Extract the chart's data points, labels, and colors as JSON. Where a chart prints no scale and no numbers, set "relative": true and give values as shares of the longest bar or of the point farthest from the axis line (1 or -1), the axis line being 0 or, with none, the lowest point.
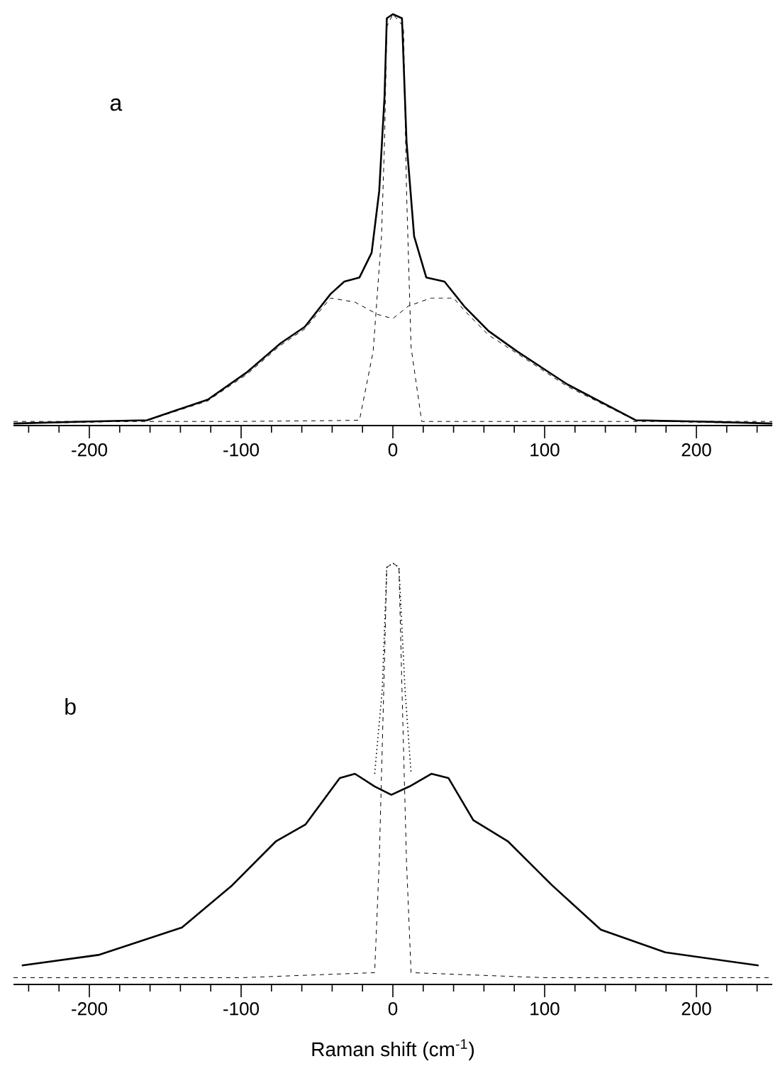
{
  "chart_data": [
    {
      "type": "line",
      "relative": true,
      "annotations": [
        "a"
      ],
      "xlim": [
        -250,
        250
      ],
      "xticks": [
        {
          "value": -240,
          "label": null
        },
        {
          "value": -220,
          "label": null
        },
        -200,
        {
          "value": -180,
          "label": null
        },
        {
          "value": -160,
          "label": null
        },
        {
          "value": -140,
          "label": null
        },
        {
          "value": -120,
          "label": null
        },
        -100,
        {
          "value": -80,
          "label": null
        },
        {
          "value": -60,
          "label": null
        },
        {
          "value": -40,
          "label": null
        },
        {
          "value": -20,
          "label": null
        },
        0,
        {
          "value": 20,
          "label": null
        },
        {
          "value": 40,
          "label": null
        },
        {
          "value": 60,
          "label": null
        },
        {
          "value": 80,
          "label": null
        },
        100,
        {
          "value": 120,
          "label": null
        },
        {
          "value": 140,
          "label": null
        },
        {
          "value": 160,
          "label": null
        },
        {
          "value": 180,
          "label": null
        },
        200,
        {
          "value": 220,
          "label": null
        },
        {
          "value": 240,
          "label": null
        }
      ],
      "series": [
        {
          "color": "#000000",
          "line_style": "solid",
          "x": [
            -250,
            -200,
            -162,
            -122,
            -96,
            -74,
            -58,
            -41,
            -32,
            -22,
            -14,
            -9,
            -5.5,
            -4,
            0,
            6,
            9,
            14,
            22,
            34,
            47,
            63,
            82,
            115,
            160,
            200,
            250
          ],
          "values": [
            0.005,
            0.01,
            0.013,
            0.063,
            0.13,
            0.2,
            0.24,
            0.32,
            0.35,
            0.36,
            0.42,
            0.57,
            0.8,
            0.99,
            1,
            0.99,
            0.69,
            0.46,
            0.36,
            0.35,
            0.29,
            0.23,
            0.18,
            0.1,
            0.013,
            0.01,
            0.005
          ]
        },
        {
          "color": "#000000",
          "line_style": "dashed",
          "x": [
            -250,
            -200,
            -162,
            -122,
            -96,
            -74,
            -58,
            -41,
            -25,
            -10,
            0,
            10,
            25,
            40,
            47,
            63,
            82,
            115,
            160,
            200,
            250
          ],
          "values": [
            0.005,
            0.008,
            0.012,
            0.06,
            0.125,
            0.195,
            0.235,
            0.31,
            0.3,
            0.27,
            0.26,
            0.29,
            0.31,
            0.31,
            0.28,
            0.22,
            0.175,
            0.095,
            0.012,
            0.008,
            0.005
          ]
        },
        {
          "color": "#000000",
          "line_style": "dashed",
          "x": [
            -250,
            -100,
            -40,
            -22,
            -13,
            -7.5,
            -5.5,
            -4,
            0,
            7,
            9,
            12,
            19,
            40,
            100,
            250
          ],
          "values": [
            0.01,
            0.01,
            0.012,
            0.013,
            0.18,
            0.46,
            0.69,
            0.97,
            1,
            0.97,
            0.57,
            0.19,
            0.01,
            0.01,
            0.01,
            0.01
          ]
        }
      ]
    },
    {
      "type": "line",
      "relative": true,
      "annotations": [
        "b"
      ],
      "xlabel": "Raman shift (cm$^{-1}$)",
      "xlim": [
        -250,
        250
      ],
      "xticks": [
        {
          "value": -240,
          "label": null
        },
        {
          "value": -220,
          "label": null
        },
        -200,
        {
          "value": -180,
          "label": null
        },
        {
          "value": -160,
          "label": null
        },
        {
          "value": -140,
          "label": null
        },
        {
          "value": -120,
          "label": null
        },
        -100,
        {
          "value": -80,
          "label": null
        },
        {
          "value": -60,
          "label": null
        },
        {
          "value": -40,
          "label": null
        },
        {
          "value": -20,
          "label": null
        },
        0,
        {
          "value": 20,
          "label": null
        },
        {
          "value": 40,
          "label": null
        },
        {
          "value": 60,
          "label": null
        },
        {
          "value": 80,
          "label": null
        },
        100,
        {
          "value": 120,
          "label": null
        },
        {
          "value": 140,
          "label": null
        },
        {
          "value": 160,
          "label": null
        },
        {
          "value": 180,
          "label": null
        },
        200,
        {
          "value": 220,
          "label": null
        },
        {
          "value": 240,
          "label": null
        }
      ],
      "series": [
        {
          "color": "#000000",
          "line_style": "solid",
          "x": [
            -244.5,
            -194,
            -139,
            -106,
            -77,
            -57.5,
            -35,
            -25,
            -12,
            -1,
            11,
            25.5,
            36.6,
            53,
            75.7,
            105,
            137,
            179.5,
            241
          ],
          "values": [
            0.045,
            0.07,
            0.135,
            0.235,
            0.34,
            0.38,
            0.49,
            0.5,
            0.47,
            0.45,
            0.47,
            0.5,
            0.49,
            0.39,
            0.34,
            0.235,
            0.13,
            0.076,
            0.045
          ]
        },
        {
          "color": "#000000",
          "line_style": "dotted",
          "x": [
            -12,
            -7,
            -4,
            0,
            4,
            8,
            12
          ],
          "values": [
            0.5,
            0.7,
            0.99,
            1,
            0.99,
            0.7,
            0.5
          ]
        },
        {
          "color": "#000000",
          "line_style": "dashed",
          "x": [
            -250,
            -100,
            -12,
            -9,
            -6,
            -4,
            0,
            4,
            6,
            9,
            12,
            100,
            250
          ],
          "values": [
            0.016,
            0.016,
            0.028,
            0.29,
            0.7,
            0.99,
            1,
            0.99,
            0.7,
            0.29,
            0.028,
            0.016,
            0.016
          ]
        }
      ]
    }
  ]
}
